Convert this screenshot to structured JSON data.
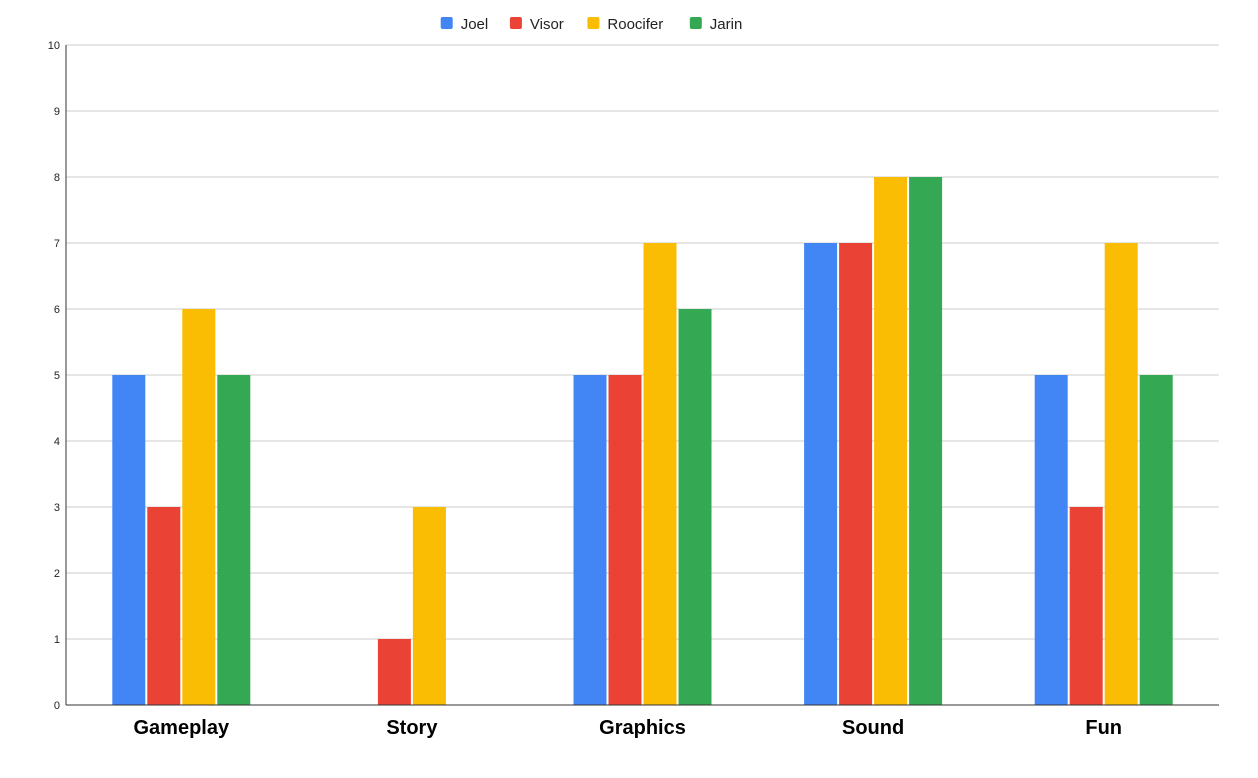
{
  "chart_data": {
    "type": "bar",
    "title": "",
    "xlabel": "",
    "ylabel": "",
    "categories": [
      "Gameplay",
      "Story",
      "Graphics",
      "Sound",
      "Fun"
    ],
    "series": [
      {
        "name": "Joel",
        "color": "#4285f4",
        "values": [
          5,
          0,
          5,
          7,
          5
        ]
      },
      {
        "name": "Visor",
        "color": "#ea4335",
        "values": [
          3,
          1,
          5,
          7,
          3
        ]
      },
      {
        "name": "Roocifer",
        "color": "#fbbc04",
        "values": [
          6,
          3,
          7,
          8,
          7
        ]
      },
      {
        "name": "Jarin",
        "color": "#34a853",
        "values": [
          5,
          0,
          6,
          8,
          5
        ]
      }
    ],
    "ylim": [
      0,
      10
    ],
    "yticks": [
      "0",
      "1",
      "2",
      "3",
      "4",
      "5",
      "6",
      "7",
      "8",
      "9",
      "10"
    ],
    "grid": true,
    "legend_position": "top-center"
  }
}
